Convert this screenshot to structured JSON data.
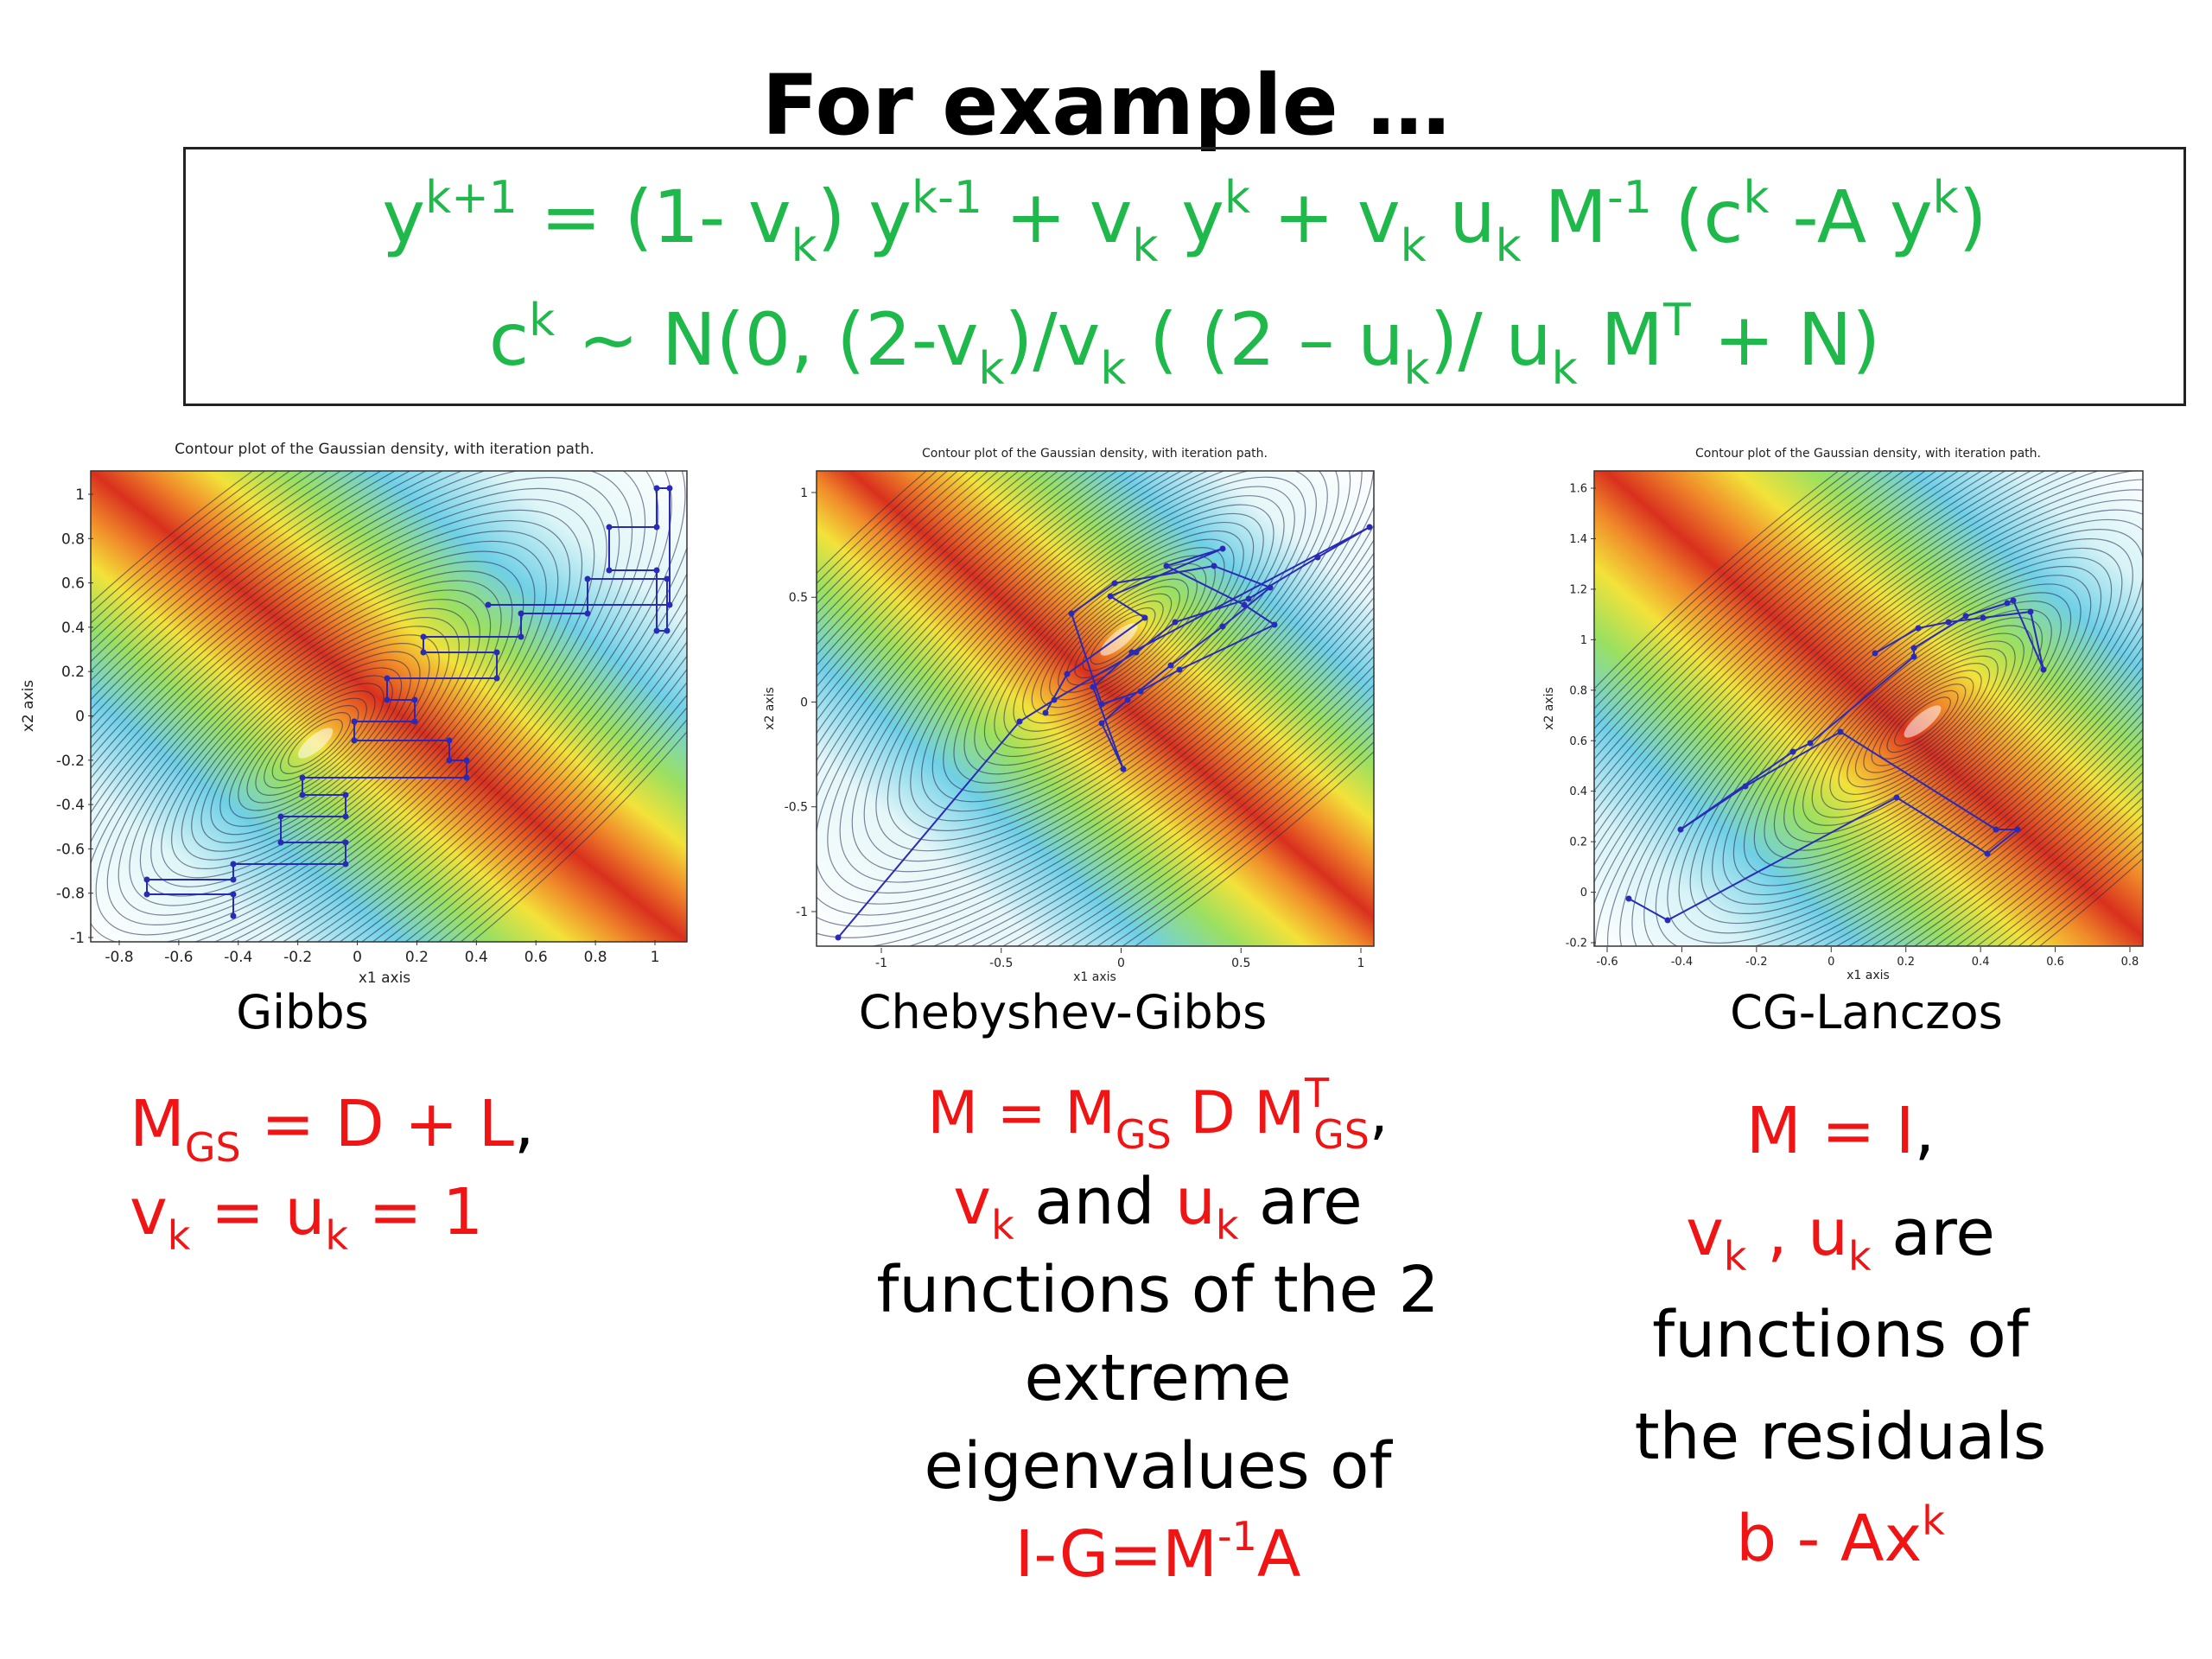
{
  "slide": {
    "title": "For example …"
  },
  "equations": {
    "line1": {
      "y": "y",
      "k_plus_1": "k+1",
      "part1": " = (1- v",
      "k1": "k",
      "part2": ") y",
      "k_minus_1": "k-1",
      "part3": " + v",
      "k2": "k",
      "part4": " y",
      "k3": "k",
      "part5": "  + v",
      "k4": "k",
      "part6": " u",
      "k5": "k",
      "part7": " M",
      "minus1": "-1",
      "part8": " (c",
      "k6": "k",
      "part9": " -A y",
      "k7": "k",
      "part10": ")"
    },
    "line2": {
      "c": "c",
      "k1": "k",
      "part1": " ~ N(0, (2-v",
      "k2": "k",
      "part2": ")/v",
      "k3": "k",
      "part3": " ( (2 – u",
      "k4": "k",
      "part4": ")/ u",
      "k5": "k",
      "part5": " M",
      "T": "T",
      "part6": " + N)"
    }
  },
  "plots": [
    {
      "method": "Gibbs",
      "title": "Contour plot of the Gaussian density, with iteration path.",
      "xlabel": "x1 axis",
      "ylabel": "x2 axis",
      "xticks": [
        "-0.8",
        "-0.6",
        "-0.4",
        "-0.2",
        "0",
        "0.2",
        "0.4",
        "0.6",
        "0.8",
        "1"
      ],
      "yticks": [
        "1",
        "0.8",
        "0.6",
        "0.4",
        "0.2",
        "0",
        "-0.2",
        "-0.4",
        "-0.6",
        "-0.8",
        "-1"
      ]
    },
    {
      "method": "Chebyshev-Gibbs",
      "title": "Contour plot of the Gaussian density, with iteration path.",
      "xlabel": "x1 axis",
      "ylabel": "x2 axis",
      "xticks": [
        "-1",
        "-0.5",
        "0",
        "0.5",
        "1"
      ],
      "yticks": [
        "1",
        "0.5",
        "0",
        "-0.5",
        "-1"
      ]
    },
    {
      "method": "CG-Lanczos",
      "title": "Contour plot of the Gaussian density, with iteration path.",
      "xlabel": "x1 axis",
      "ylabel": "x2 axis",
      "xticks": [
        "-0.6",
        "-0.4",
        "-0.2",
        "0",
        "0.2",
        "0.4",
        "0.6",
        "0.8"
      ],
      "yticks": [
        "1.6",
        "1.4",
        "1.2",
        "1",
        "0.8",
        "0.6",
        "0.4",
        "0.2",
        "0",
        "-0.2"
      ]
    }
  ],
  "descriptions": {
    "gibbs": {
      "l1_M": "M",
      "l1_GS": "GS",
      "l1_rest": " = D + L",
      "l1_comma": ",",
      "l2_v": "v",
      "l2_k1": "k",
      "l2_mid": " = u",
      "l2_k2": "k",
      "l2_end": " = 1"
    },
    "cheb": {
      "l1_a": "M = M",
      "l1_GS1": "GS",
      "l1_b": " D M",
      "l1_T": "T",
      "l1_GS2": "GS",
      "l1_comma": ",",
      "l2_v": "v",
      "l2_k1": "k",
      "l2_and": " and ",
      "l2_u": "u",
      "l2_k2": "k",
      "l2_are": " are",
      "l3": "functions of the 2",
      "l4": "extreme",
      "l5": "eigenvalues of",
      "l6_a": "I-G=M",
      "l6_sup": "-1",
      "l6_b": "A"
    },
    "cg": {
      "l1_a": "M = I",
      "l1_comma": ",",
      "l2_v": "v",
      "l2_k1": "k",
      "l2_sep": " , u",
      "l2_k2": "k",
      "l2_are": " are",
      "l3": "functions of",
      "l4": "the residuals",
      "l5_a": "b - Ax",
      "l5_sup": "k"
    }
  },
  "colors": {
    "equation": "#1fb84a",
    "highlight": "#f01414",
    "path": "#2a2ab8"
  }
}
